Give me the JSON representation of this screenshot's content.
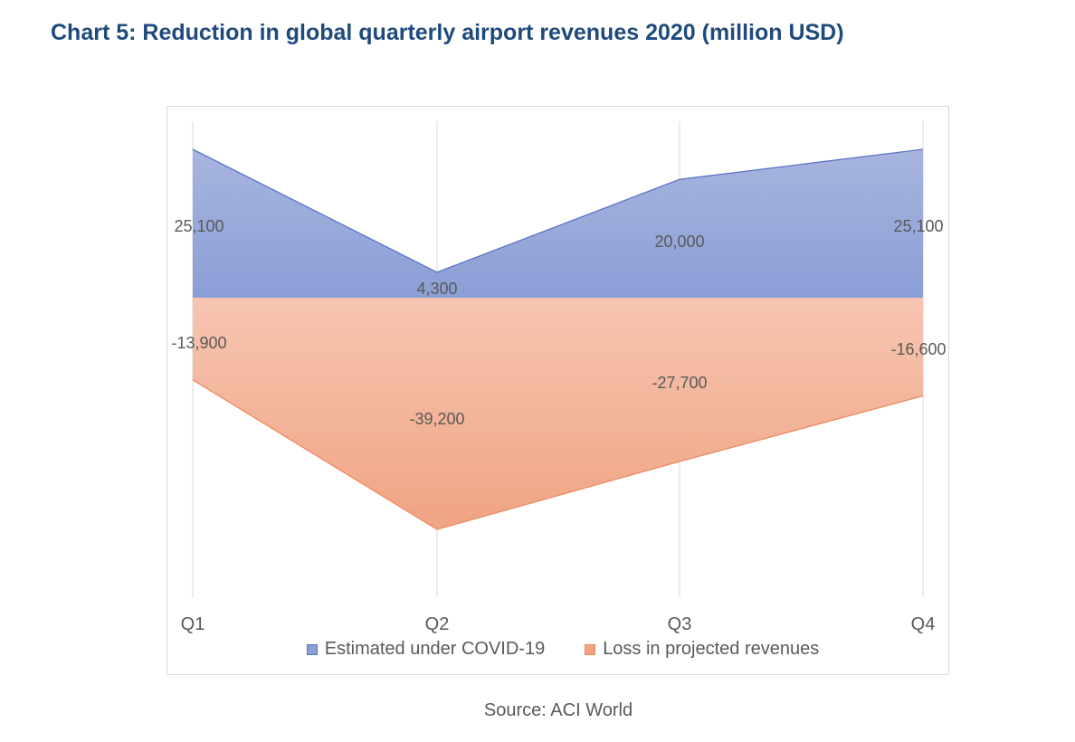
{
  "title": "Chart 5: Reduction in global quarterly airport revenues 2020 (million USD)",
  "source": "Source: ACI World",
  "colors": {
    "estimated_fill_top": "#a7b5de",
    "estimated_fill_bottom": "#8a9fd6",
    "estimated_line": "#5b74c2",
    "loss_fill_top": "#f6c5b1",
    "loss_fill_bottom": "#f0a483",
    "loss_line": "#ee8a62",
    "grid": "#d9d9d9",
    "label": "#595959"
  },
  "chart_data": {
    "type": "area",
    "categories": [
      "Q1",
      "Q2",
      "Q3",
      "Q4"
    ],
    "series": [
      {
        "name": "Estimated under COVID-19",
        "values": [
          25100,
          4300,
          20000,
          25100
        ],
        "labels": [
          "25,100",
          "4,300",
          "20,000",
          "25,100"
        ]
      },
      {
        "name": "Loss in projected revenues",
        "values": [
          -13900,
          -39200,
          -27700,
          -16600
        ],
        "labels": [
          "-13,900",
          "-39,200",
          "-27,700",
          "-16,600"
        ]
      }
    ],
    "title": "Chart 5: Reduction in global quarterly airport revenues 2020 (million USD)",
    "xlabel": "",
    "ylabel": "",
    "grid": "vertical",
    "legend": "bottom"
  }
}
